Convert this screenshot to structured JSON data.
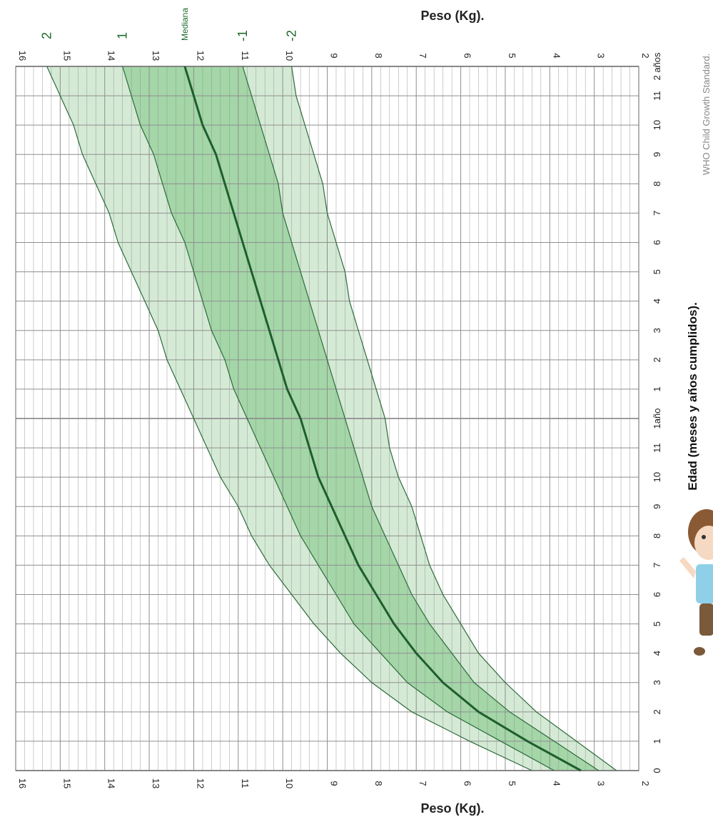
{
  "chart_data": {
    "type": "line",
    "orientation": "rotated-90-clockwise",
    "y_axis_title": "Peso (Kg).",
    "x_axis_title": "Edad (meses y años cumplidos).",
    "credit": "WHO Child Growth Standard.",
    "ylim": [
      2,
      16
    ],
    "y_ticks": [
      "2",
      "3",
      "4",
      "5",
      "6",
      "7",
      "8",
      "9",
      "10",
      "11",
      "12",
      "13",
      "14",
      "15",
      "16"
    ],
    "xlim": [
      0,
      24
    ],
    "x_tick_labels": [
      "0",
      "1",
      "2",
      "3",
      "4",
      "5",
      "6",
      "7",
      "8",
      "9",
      "10",
      "11",
      "1año",
      "1",
      "2",
      "3",
      "4",
      "5",
      "6",
      "7",
      "8",
      "9",
      "10",
      "11",
      "2 años"
    ],
    "x_months": [
      0,
      1,
      2,
      3,
      4,
      5,
      6,
      7,
      8,
      9,
      10,
      11,
      12,
      13,
      14,
      15,
      16,
      17,
      18,
      19,
      20,
      21,
      22,
      23,
      24
    ],
    "series": [
      {
        "name": "2",
        "values": [
          4.4,
          5.8,
          7.1,
          8.0,
          8.7,
          9.3,
          9.8,
          10.3,
          10.7,
          11.0,
          11.4,
          11.7,
          12.0,
          12.3,
          12.6,
          12.8,
          13.1,
          13.4,
          13.7,
          13.9,
          14.2,
          14.5,
          14.7,
          15.0,
          15.3
        ]
      },
      {
        "name": "1",
        "values": [
          3.9,
          5.1,
          6.3,
          7.2,
          7.8,
          8.4,
          8.8,
          9.2,
          9.6,
          9.9,
          10.2,
          10.5,
          10.8,
          11.1,
          11.3,
          11.6,
          11.8,
          12.0,
          12.2,
          12.5,
          12.7,
          12.9,
          13.2,
          13.4,
          13.6
        ]
      },
      {
        "name": "Mediana",
        "values": [
          3.3,
          4.5,
          5.6,
          6.4,
          7.0,
          7.5,
          7.9,
          8.3,
          8.6,
          8.9,
          9.2,
          9.4,
          9.6,
          9.9,
          10.1,
          10.3,
          10.5,
          10.7,
          10.9,
          11.1,
          11.3,
          11.5,
          11.8,
          12.0,
          12.2
        ]
      },
      {
        "name": "-1",
        "values": [
          2.9,
          3.9,
          4.9,
          5.7,
          6.2,
          6.7,
          7.1,
          7.4,
          7.7,
          8.0,
          8.2,
          8.4,
          8.6,
          8.8,
          9.0,
          9.2,
          9.4,
          9.6,
          9.8,
          10.0,
          10.1,
          10.3,
          10.5,
          10.7,
          10.9
        ]
      },
      {
        "name": "-2",
        "values": [
          2.5,
          3.4,
          4.3,
          5.0,
          5.6,
          6.0,
          6.4,
          6.7,
          6.9,
          7.1,
          7.4,
          7.6,
          7.7,
          7.9,
          8.1,
          8.3,
          8.5,
          8.6,
          8.8,
          9.0,
          9.1,
          9.3,
          9.5,
          9.7,
          9.8
        ]
      }
    ],
    "colors": {
      "outer_band": "#d4ead5",
      "inner_band": "#a4d6a8",
      "median_line": "#1e5e2c",
      "sd_line": "#2e6a3a",
      "grid": "#8f8f8f",
      "label": "#1e6b2e"
    },
    "illustration": "baby-illustration"
  }
}
